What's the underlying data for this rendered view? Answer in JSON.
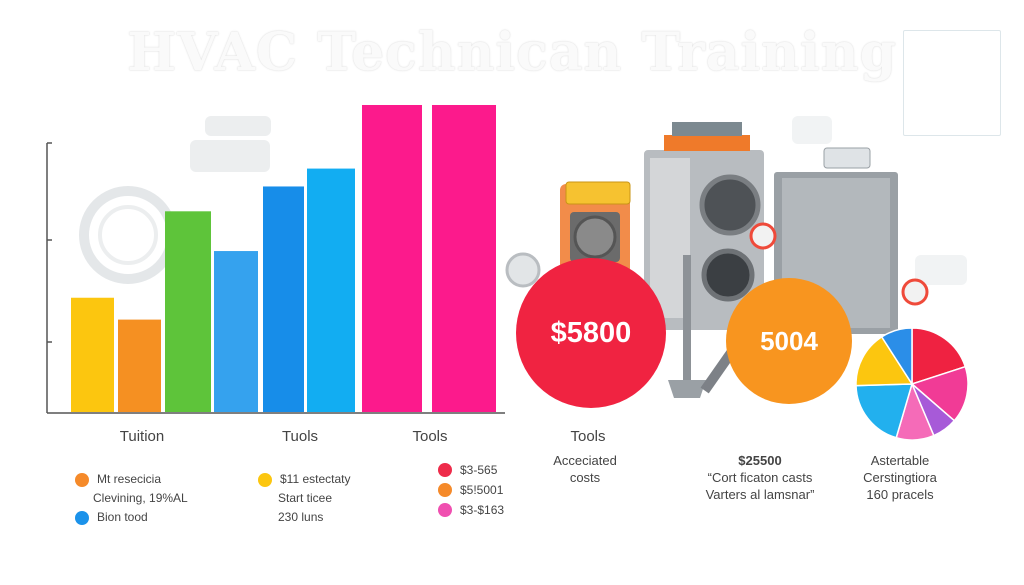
{
  "title": "HVAC Technican Training",
  "chart_data": {
    "type": "bar",
    "groups": [
      {
        "label": "Tuition",
        "bars": [
          {
            "value": 115,
            "color": "#fcc60f"
          },
          {
            "value": 93,
            "color": "#f59022"
          },
          {
            "value": 202,
            "color": "#5ec43a"
          }
        ]
      },
      {
        "label": "Tuols",
        "bars": [
          {
            "value": 162,
            "color": "#35a2ee"
          },
          {
            "value": 227,
            "color": "#178de9"
          },
          {
            "value": 245,
            "color": "#12adf2"
          }
        ]
      },
      {
        "label": "Tools",
        "bars": [
          {
            "value": 309,
            "color": "#fc1a8c"
          },
          {
            "value": 309,
            "color": "#fc1a8c"
          }
        ]
      }
    ],
    "ylim": [
      0,
      310
    ]
  },
  "legends": [
    {
      "items": [
        {
          "text": "Mt resecicia",
          "color": "#f58a2a"
        },
        {
          "text": "Clevining, 19%AL",
          "color": ""
        },
        {
          "text": "Bion tood",
          "color": "#1b92ea"
        }
      ]
    },
    {
      "items": [
        {
          "text": "$11 estectaty",
          "color": "#fcc60f"
        },
        {
          "text": "Start ticee",
          "color": ""
        },
        {
          "text": "230 luns",
          "color": ""
        }
      ]
    },
    {
      "items": [
        {
          "text": "$3-565",
          "color": "#ee2b4a"
        },
        {
          "text": "$5!5001",
          "color": "#f58a2a"
        },
        {
          "text": "$3-$163",
          "color": "#f04fb0"
        }
      ]
    }
  ],
  "costs": {
    "heading": "Tools",
    "sub1": "Acceciated",
    "sub2": "costs",
    "circle1": {
      "value": "$5800",
      "color": "#f02341"
    },
    "circle2": {
      "value": "5004",
      "color": "#f8951f"
    }
  },
  "cert": {
    "amount": "$25500",
    "line1": "“Cort ficaton casts",
    "line2": "Varters al lamsnar”"
  },
  "pie": {
    "caption1": "Astertable",
    "caption2": "Cerstingtiora",
    "caption3": "160 pracels",
    "slices": [
      {
        "value": 22,
        "color": "#ef2241"
      },
      {
        "value": 18,
        "color": "#f13b96"
      },
      {
        "value": 8,
        "color": "#a75ad8"
      },
      {
        "value": 12,
        "color": "#f56bb8"
      },
      {
        "value": 22,
        "color": "#22b0ee"
      },
      {
        "value": 18,
        "color": "#fcc60f"
      },
      {
        "value": 10,
        "color": "#2b8ee8"
      }
    ]
  }
}
